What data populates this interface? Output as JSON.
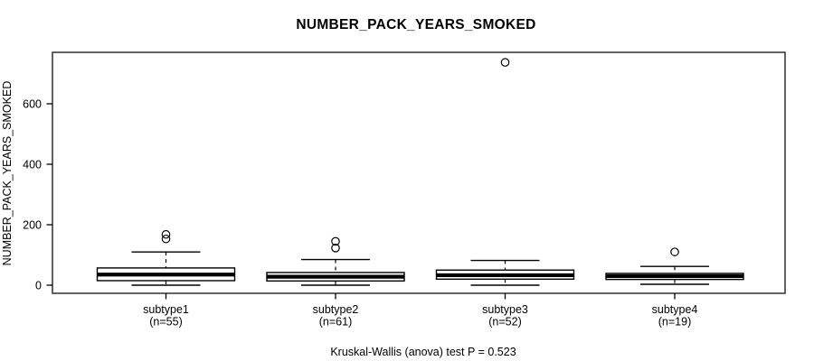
{
  "title": "NUMBER_PACK_YEARS_SMOKED",
  "caption": "Kruskal-Wallis (anova) test P = 0.523",
  "chart_data": {
    "type": "boxplot",
    "title": "NUMBER_PACK_YEARS_SMOKED",
    "ylabel": "NUMBER_PACK_YEARS_SMOKED",
    "xlabel": "",
    "ylim": [
      -27,
      770
    ],
    "yticks": [
      0,
      200,
      400,
      600
    ],
    "grid": false,
    "legend": "none",
    "annotation": "Kruskal-Wallis (anova) test P = 0.523",
    "groups": [
      {
        "label": "subtype1",
        "n_label": "(n=55)",
        "n": 55,
        "whisker_low": 0,
        "q1": 15,
        "median": 35,
        "q3": 57,
        "whisker_high": 110,
        "outliers": [
          153,
          168
        ]
      },
      {
        "label": "subtype2",
        "n_label": "(n=61)",
        "n": 61,
        "whisker_low": 0,
        "q1": 14,
        "median": 28,
        "q3": 42,
        "whisker_high": 85,
        "outliers": [
          123,
          145
        ]
      },
      {
        "label": "subtype3",
        "n_label": "(n=52)",
        "n": 52,
        "whisker_low": 0,
        "q1": 20,
        "median": 33,
        "q3": 50,
        "whisker_high": 82,
        "outliers": [
          737
        ]
      },
      {
        "label": "subtype4",
        "n_label": "(n=19)",
        "n": 19,
        "whisker_low": 3,
        "q1": 19,
        "median": 30,
        "q3": 39,
        "whisker_high": 62,
        "outliers": [
          110
        ]
      }
    ]
  },
  "colors": {
    "line": "#000000",
    "frame": "#3c3c3c",
    "box_fill": "#ffffff",
    "background": "#ffffff"
  }
}
